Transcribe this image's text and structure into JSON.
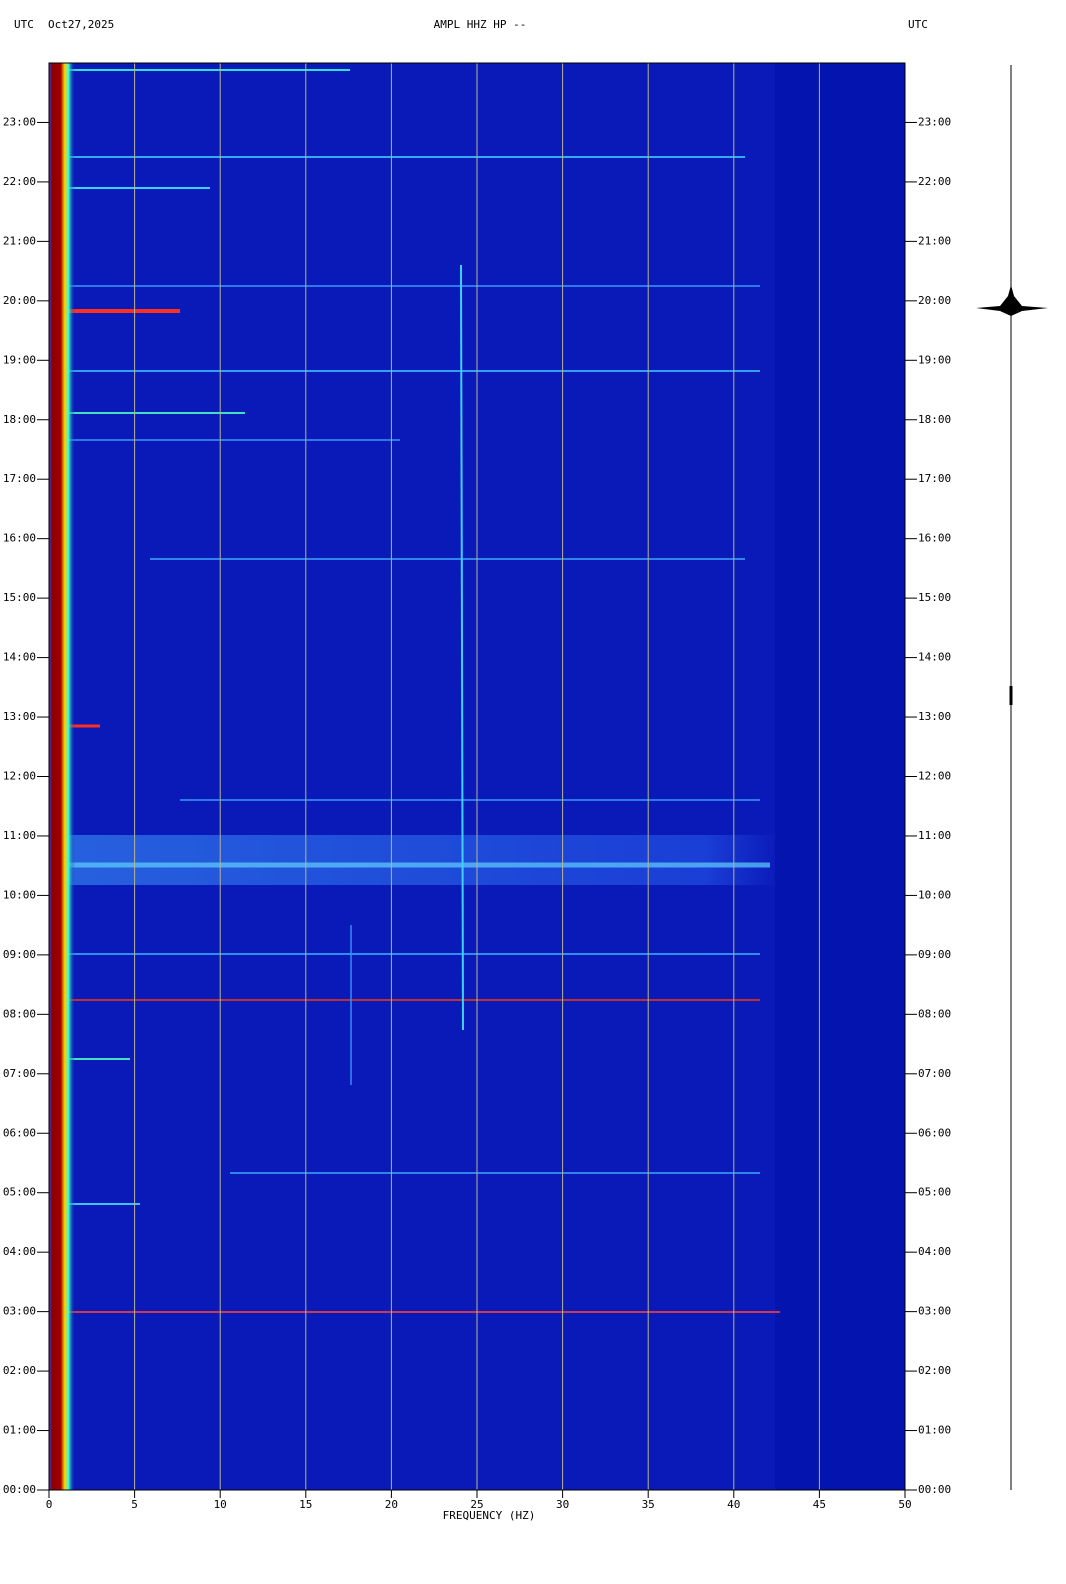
{
  "chart_data": {
    "type": "spectrogram",
    "header_left": "UTC",
    "date": "Oct27,2025",
    "title": "AMPL HHZ HP --",
    "header_right": "UTC",
    "xlabel": "FREQUENCY (HZ)",
    "xlim": [
      0,
      50
    ],
    "xticks": [
      0,
      5,
      10,
      15,
      20,
      25,
      30,
      35,
      40,
      45,
      50
    ],
    "ylim": [
      0,
      24
    ],
    "yticks": [
      {
        "value": 0,
        "label": "00:00"
      },
      {
        "value": 1,
        "label": "01:00"
      },
      {
        "value": 2,
        "label": "02:00"
      },
      {
        "value": 3,
        "label": "03:00"
      },
      {
        "value": 4,
        "label": "04:00"
      },
      {
        "value": 5,
        "label": "05:00"
      },
      {
        "value": 6,
        "label": "06:00"
      },
      {
        "value": 7,
        "label": "07:00"
      },
      {
        "value": 8,
        "label": "08:00"
      },
      {
        "value": 9,
        "label": "09:00"
      },
      {
        "value": 10,
        "label": "10:00"
      },
      {
        "value": 11,
        "label": "11:00"
      },
      {
        "value": 12,
        "label": "12:00"
      },
      {
        "value": 13,
        "label": "13:00"
      },
      {
        "value": 14,
        "label": "14:00"
      },
      {
        "value": 15,
        "label": "15:00"
      },
      {
        "value": 16,
        "label": "16:00"
      },
      {
        "value": 17,
        "label": "17:00"
      },
      {
        "value": 18,
        "label": "18:00"
      },
      {
        "value": 19,
        "label": "19:00"
      },
      {
        "value": 20,
        "label": "20:00"
      },
      {
        "value": 21,
        "label": "21:00"
      },
      {
        "value": 22,
        "label": "22:00"
      },
      {
        "value": 23,
        "label": "23:00"
      }
    ],
    "grid": true,
    "grid_color": "#b4b49a",
    "background_color": "#0a1ab8"
  }
}
